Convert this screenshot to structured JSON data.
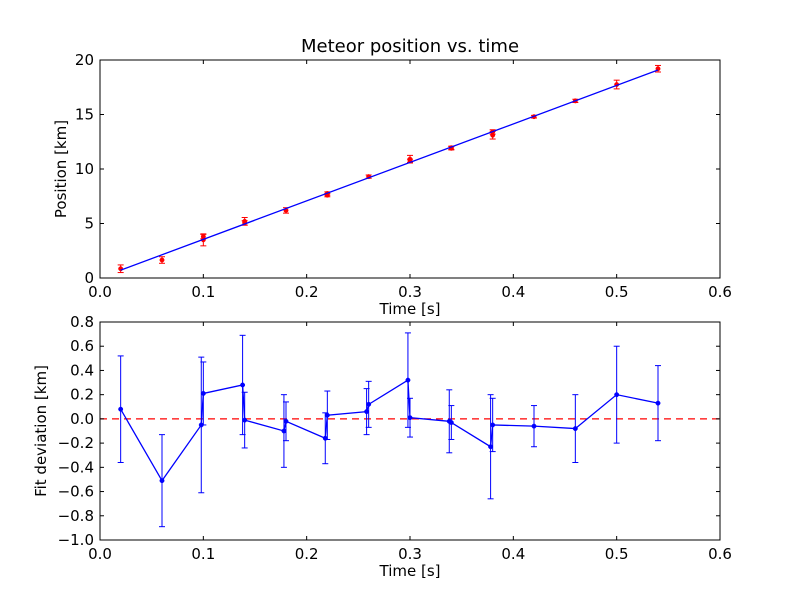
{
  "chart_data": [
    {
      "type": "scatter",
      "title": "Meteor position vs. time",
      "xlabel": "Time [s]",
      "ylabel": "Position [km]",
      "xlim": [
        0.0,
        0.6
      ],
      "ylim": [
        0,
        20
      ],
      "xticks": [
        "0.0",
        "0.1",
        "0.2",
        "0.3",
        "0.4",
        "0.5",
        "0.6"
      ],
      "yticks": [
        "0",
        "5",
        "10",
        "15",
        "20"
      ],
      "grid": false,
      "series": [
        {
          "kind": "errorbar-points",
          "color": "#ff0000",
          "points": [
            {
              "x": 0.02,
              "y": 0.85,
              "err": 0.35
            },
            {
              "x": 0.06,
              "y": 1.65,
              "err": 0.3
            },
            {
              "x": 0.1,
              "y": 3.5,
              "err": 0.55
            },
            {
              "x": 0.1,
              "y": 3.8,
              "err": 0.2
            },
            {
              "x": 0.14,
              "y": 5.2,
              "err": 0.35
            },
            {
              "x": 0.14,
              "y": 5.05,
              "err": 0.2
            },
            {
              "x": 0.18,
              "y": 6.2,
              "err": 0.25
            },
            {
              "x": 0.22,
              "y": 7.6,
              "err": 0.15
            },
            {
              "x": 0.22,
              "y": 7.75,
              "err": 0.15
            },
            {
              "x": 0.26,
              "y": 9.3,
              "err": 0.15
            },
            {
              "x": 0.3,
              "y": 10.9,
              "err": 0.35
            },
            {
              "x": 0.3,
              "y": 10.75,
              "err": 0.15
            },
            {
              "x": 0.34,
              "y": 11.95,
              "err": 0.15
            },
            {
              "x": 0.34,
              "y": 11.9,
              "err": 0.15
            },
            {
              "x": 0.38,
              "y": 13.1,
              "err": 0.35
            },
            {
              "x": 0.38,
              "y": 13.4,
              "err": 0.2
            },
            {
              "x": 0.42,
              "y": 14.8,
              "err": 0.12
            },
            {
              "x": 0.46,
              "y": 16.25,
              "err": 0.15
            },
            {
              "x": 0.5,
              "y": 17.75,
              "err": 0.4
            },
            {
              "x": 0.54,
              "y": 19.2,
              "err": 0.3
            }
          ]
        },
        {
          "kind": "fit-line",
          "color": "#0000ff",
          "x": [
            0.02,
            0.54
          ],
          "y": [
            0.72,
            19.08
          ]
        }
      ]
    },
    {
      "type": "line",
      "xlabel": "Time [s]",
      "ylabel": "Fit deviation [km]",
      "xlim": [
        0.0,
        0.6
      ],
      "ylim": [
        -1.0,
        0.8
      ],
      "xticks": [
        "0.0",
        "0.1",
        "0.2",
        "0.3",
        "0.4",
        "0.5",
        "0.6"
      ],
      "yticks": [
        "−1.0",
        "−0.8",
        "−0.6",
        "−0.4",
        "−0.2",
        "0.0",
        "0.2",
        "0.4",
        "0.6",
        "0.8"
      ],
      "grid": false,
      "reference_line": {
        "y": 0.0,
        "color": "#ff0000",
        "style": "dashed"
      },
      "series": [
        {
          "kind": "errorbar-line",
          "color": "#0000ff",
          "points": [
            {
              "x": 0.02,
              "y": 0.08,
              "err": 0.44
            },
            {
              "x": 0.06,
              "y": -0.51,
              "err": 0.38
            },
            {
              "x": 0.098,
              "y": -0.05,
              "err": 0.56
            },
            {
              "x": 0.1,
              "y": 0.21,
              "err": 0.26
            },
            {
              "x": 0.138,
              "y": 0.28,
              "err": 0.41
            },
            {
              "x": 0.14,
              "y": -0.01,
              "err": 0.23
            },
            {
              "x": 0.178,
              "y": -0.1,
              "err": 0.3
            },
            {
              "x": 0.18,
              "y": -0.02,
              "err": 0.16
            },
            {
              "x": 0.218,
              "y": -0.16,
              "err": 0.21
            },
            {
              "x": 0.22,
              "y": 0.03,
              "err": 0.2
            },
            {
              "x": 0.258,
              "y": 0.06,
              "err": 0.19
            },
            {
              "x": 0.26,
              "y": 0.12,
              "err": 0.19
            },
            {
              "x": 0.298,
              "y": 0.32,
              "err": 0.39
            },
            {
              "x": 0.3,
              "y": 0.01,
              "err": 0.16
            },
            {
              "x": 0.338,
              "y": -0.02,
              "err": 0.26
            },
            {
              "x": 0.34,
              "y": -0.03,
              "err": 0.14
            },
            {
              "x": 0.378,
              "y": -0.23,
              "err": 0.43
            },
            {
              "x": 0.38,
              "y": -0.05,
              "err": 0.22
            },
            {
              "x": 0.42,
              "y": -0.06,
              "err": 0.17
            },
            {
              "x": 0.46,
              "y": -0.08,
              "err": 0.28
            },
            {
              "x": 0.5,
              "y": 0.2,
              "err": 0.4
            },
            {
              "x": 0.54,
              "y": 0.13,
              "err": 0.31
            }
          ]
        }
      ]
    }
  ]
}
